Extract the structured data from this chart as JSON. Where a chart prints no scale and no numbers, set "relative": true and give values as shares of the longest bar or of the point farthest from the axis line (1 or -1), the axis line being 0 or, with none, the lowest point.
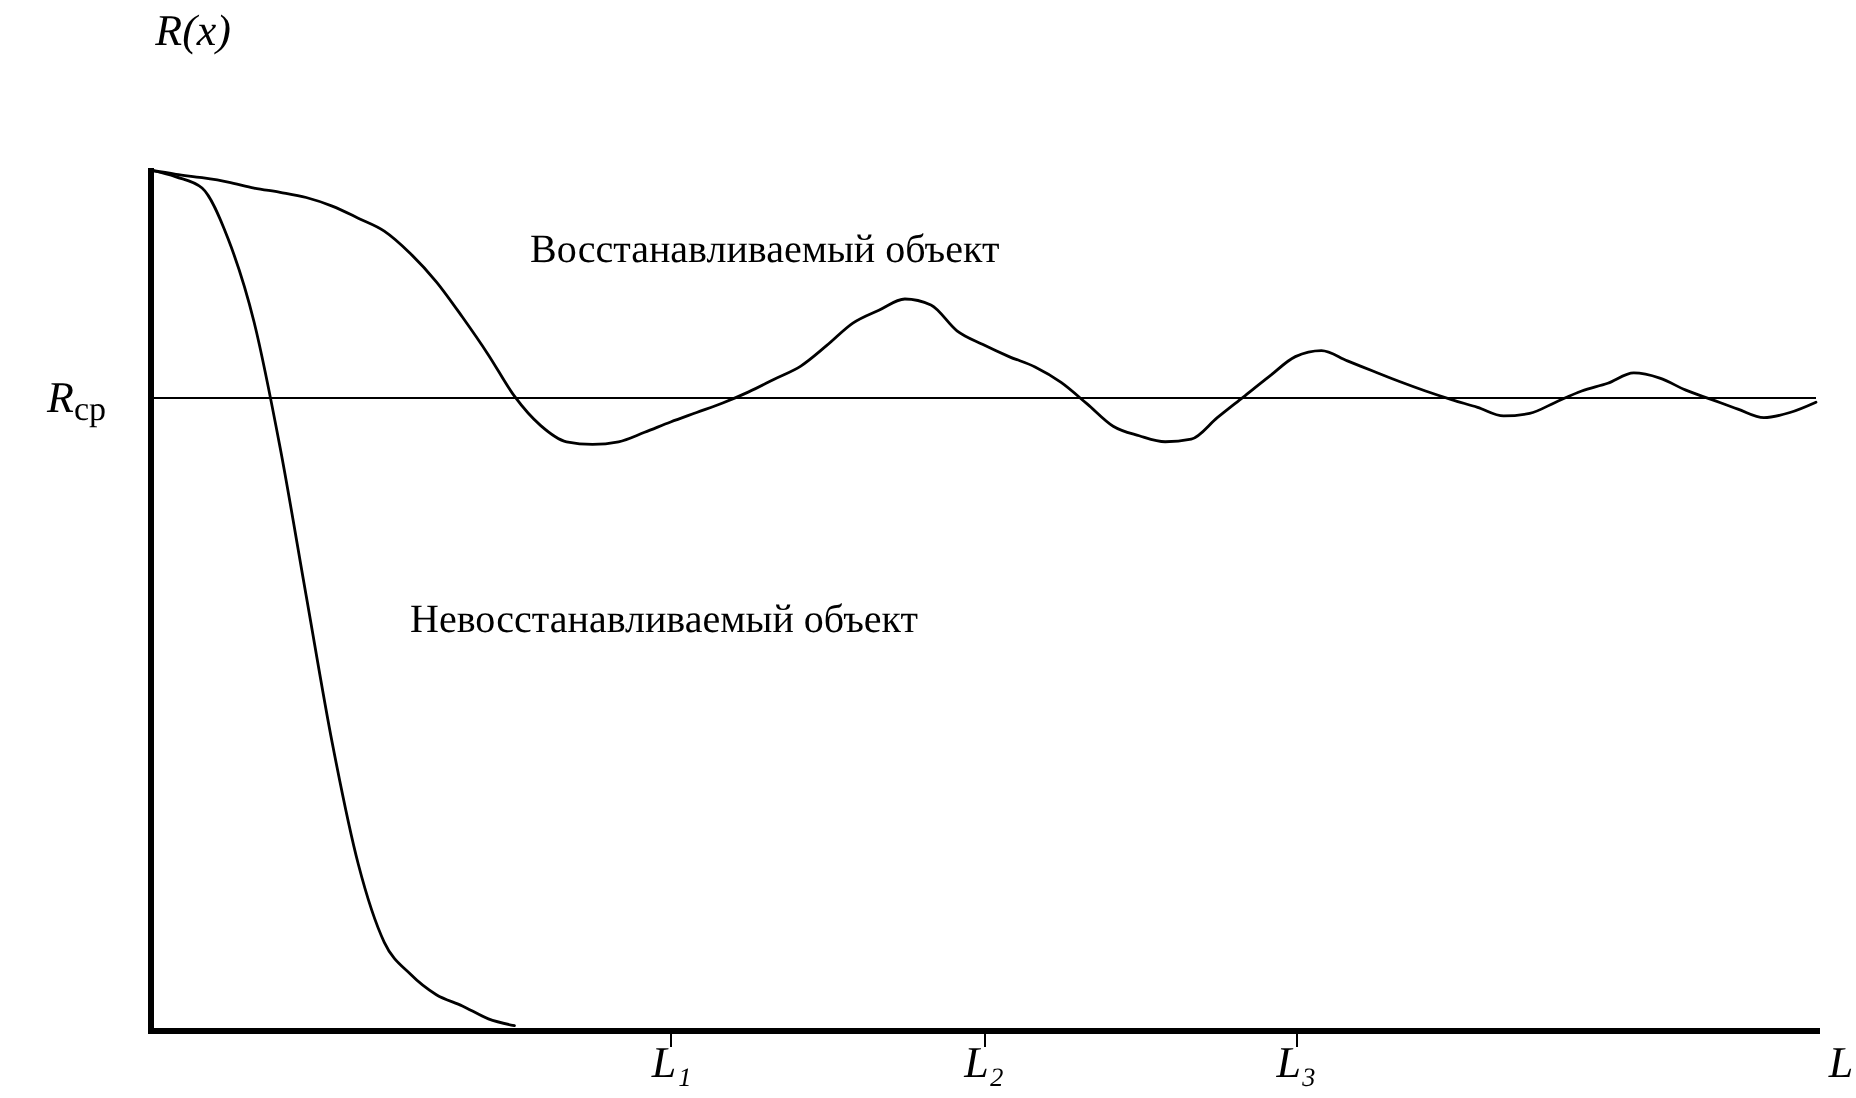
{
  "chart_data": {
    "type": "line",
    "relative": true,
    "xlabel": "L",
    "ylabel": "R(x)",
    "categories": [
      null,
      null,
      null,
      null,
      null,
      null,
      null,
      null,
      null,
      null,
      null,
      null,
      null,
      null,
      null,
      null,
      null,
      null,
      null,
      null,
      "L₁",
      null,
      null,
      null,
      null,
      null,
      null,
      null,
      null,
      null,
      null,
      null,
      "L₂",
      null,
      null,
      null,
      null,
      null,
      null,
      null,
      null,
      null,
      null,
      null,
      "L₃",
      null,
      null,
      null,
      null,
      null,
      null,
      null,
      null,
      null,
      null,
      null,
      null,
      null,
      null,
      null,
      null,
      null,
      null,
      null,
      null
    ],
    "series": [
      {
        "name": "Восстанавливаемый объект",
        "color": "#000000",
        "values": [
          1.0,
          0.995,
          0.991,
          0.986,
          0.979,
          0.974,
          0.968,
          0.958,
          0.944,
          0.929,
          0.903,
          0.87,
          0.829,
          0.785,
          0.737,
          0.703,
          0.684,
          0.681,
          0.684,
          0.695,
          0.707,
          0.718,
          0.729,
          0.742,
          0.757,
          0.772,
          0.796,
          0.822,
          0.837,
          0.85,
          0.843,
          0.813,
          0.797,
          0.783,
          0.771,
          0.753,
          0.728,
          0.702,
          0.691,
          0.684,
          0.687,
          0.712,
          0.736,
          0.76,
          0.783,
          0.79,
          0.778,
          0.766,
          0.754,
          0.743,
          0.733,
          0.724,
          0.714,
          0.717,
          0.73,
          0.743,
          0.752,
          0.764,
          0.758,
          0.744,
          0.733,
          0.722,
          0.712,
          0.718,
          0.73
        ]
      },
      {
        "name": "Невосстанавливаемый объект",
        "color": "#000000",
        "values": [
          1.0,
          0.992,
          0.979,
          0.92,
          0.823,
          0.677,
          0.505,
          0.334,
          0.193,
          0.102,
          0.065,
          0.041,
          0.028,
          0.013,
          0.005,
          null,
          null,
          null,
          null,
          null,
          null,
          null,
          null,
          null,
          null,
          null,
          null,
          null,
          null,
          null,
          null,
          null,
          null,
          null,
          null,
          null,
          null,
          null,
          null,
          null,
          null,
          null,
          null,
          null,
          null,
          null,
          null,
          null,
          null,
          null,
          null,
          null,
          null,
          null,
          null,
          null,
          null,
          null,
          null,
          null,
          null,
          null,
          null,
          null,
          null
        ]
      }
    ],
    "ref_lines": [
      {
        "axis": "y",
        "value": 0.735,
        "label": "R$_{ср}$",
        "color": "#000000"
      }
    ],
    "legend": false,
    "marker": "none",
    "line_style": "solid"
  }
}
